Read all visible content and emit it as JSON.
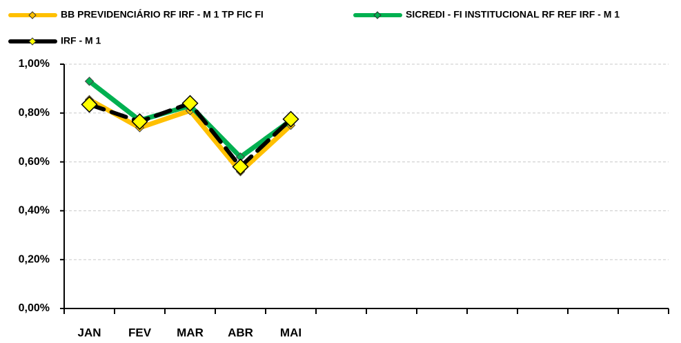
{
  "chart_data": {
    "type": "line",
    "categories": [
      "JAN",
      "FEV",
      "MAR",
      "ABR",
      "MAI",
      null,
      null,
      null,
      null,
      null,
      null,
      null
    ],
    "series": [
      {
        "name": "BB PREVIDENCIÁRIO RF IRF - M 1 TP FIC FI",
        "color": "#ffc000",
        "marker_color": "#ffc000",
        "values": [
          0.855,
          0.74,
          0.81,
          0.56,
          0.75,
          null,
          null,
          null,
          null,
          null,
          null,
          null
        ]
      },
      {
        "name": "SICREDI - FI INSTITUCIONAL RF REF IRF - M 1",
        "color": "#00b050",
        "marker_color": "#00b050",
        "values": [
          0.93,
          0.77,
          0.83,
          0.62,
          0.77,
          null,
          null,
          null,
          null,
          null,
          null,
          null
        ]
      },
      {
        "name": "IRF - M 1",
        "color": "#000000",
        "marker_color": "#ffff00",
        "line_style": "dotted",
        "values": [
          0.835,
          0.765,
          0.84,
          0.58,
          0.775,
          null,
          null,
          null,
          null,
          null,
          null,
          null
        ]
      }
    ],
    "ylim": [
      0,
      1
    ],
    "yticks": [
      {
        "value": 0,
        "label": "0,00%"
      },
      {
        "value": 0.2,
        "label": "0,20%"
      },
      {
        "value": 0.4,
        "label": "0,40%"
      },
      {
        "value": 0.6,
        "label": "0,60%"
      },
      {
        "value": 0.8,
        "label": "0,80%"
      },
      {
        "value": 1,
        "label": "1,00%"
      }
    ],
    "grid": true,
    "legend": "top"
  }
}
